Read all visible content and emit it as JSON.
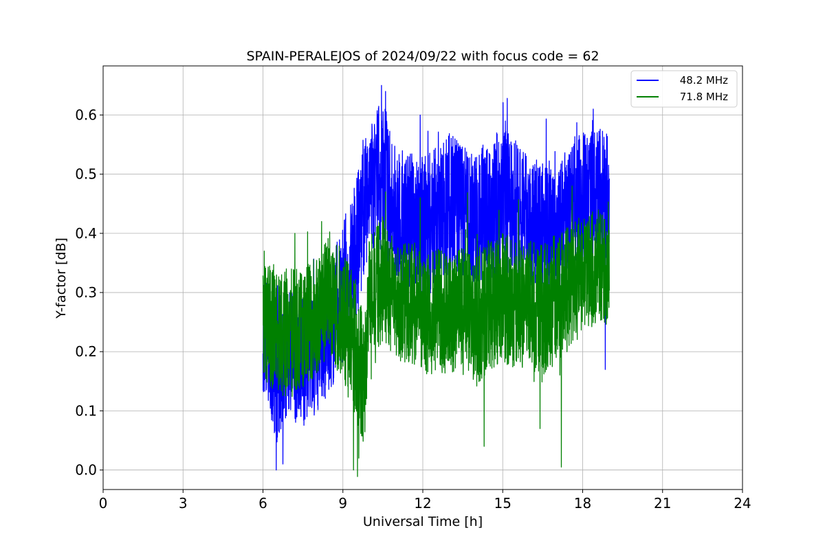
{
  "chart_data": {
    "type": "line",
    "title": "SPAIN-PERALEJOS of 2024/09/22 with focus code = 62",
    "xlabel": "Universal Time [h]",
    "ylabel": "Y-factor [dB]",
    "xlim": [
      0,
      24
    ],
    "ylim": [
      -0.033,
      0.683
    ],
    "xticks": [
      0,
      3,
      6,
      9,
      12,
      15,
      18,
      21,
      24
    ],
    "yticks": [
      0.0,
      0.1,
      0.2,
      0.3,
      0.4,
      0.5,
      0.6
    ],
    "grid": true,
    "legend_position": "top-right",
    "series": [
      {
        "name": "48.2 MHz",
        "color": "#0000ff",
        "x_range": [
          6.0,
          19.0
        ],
        "profile": [
          [
            6.0,
            0.24,
            0.22
          ],
          [
            6.25,
            0.2,
            0.2
          ],
          [
            6.5,
            0.17,
            0.26
          ],
          [
            6.75,
            0.18,
            0.24
          ],
          [
            7.0,
            0.19,
            0.22
          ],
          [
            7.5,
            0.19,
            0.22
          ],
          [
            8.0,
            0.2,
            0.22
          ],
          [
            8.5,
            0.24,
            0.22
          ],
          [
            9.0,
            0.3,
            0.24
          ],
          [
            9.5,
            0.37,
            0.24
          ],
          [
            10.0,
            0.48,
            0.22
          ],
          [
            10.5,
            0.5,
            0.26
          ],
          [
            11.0,
            0.43,
            0.22
          ],
          [
            11.5,
            0.42,
            0.24
          ],
          [
            12.0,
            0.4,
            0.26
          ],
          [
            12.5,
            0.43,
            0.24
          ],
          [
            13.0,
            0.45,
            0.24
          ],
          [
            13.5,
            0.44,
            0.22
          ],
          [
            14.0,
            0.42,
            0.22
          ],
          [
            14.5,
            0.44,
            0.26
          ],
          [
            15.0,
            0.46,
            0.24
          ],
          [
            15.5,
            0.44,
            0.24
          ],
          [
            16.0,
            0.42,
            0.22
          ],
          [
            16.5,
            0.41,
            0.22
          ],
          [
            17.0,
            0.4,
            0.22
          ],
          [
            17.5,
            0.45,
            0.22
          ],
          [
            18.0,
            0.46,
            0.22
          ],
          [
            18.5,
            0.47,
            0.22
          ],
          [
            19.0,
            0.46,
            0.22
          ]
        ],
        "spikes": [
          [
            6.5,
            0.0
          ],
          [
            6.75,
            0.01
          ],
          [
            10.45,
            0.65
          ],
          [
            10.6,
            0.64
          ],
          [
            11.9,
            0.6
          ],
          [
            15.1,
            0.59
          ],
          [
            18.4,
            0.61
          ],
          [
            18.85,
            0.17
          ]
        ]
      },
      {
        "name": "71.8 MHz",
        "color": "#008000",
        "x_range": [
          6.0,
          19.0
        ],
        "profile": [
          [
            6.0,
            0.25,
            0.2
          ],
          [
            6.5,
            0.24,
            0.22
          ],
          [
            7.0,
            0.23,
            0.22
          ],
          [
            7.5,
            0.24,
            0.2
          ],
          [
            8.0,
            0.26,
            0.2
          ],
          [
            8.5,
            0.3,
            0.22
          ],
          [
            9.0,
            0.26,
            0.22
          ],
          [
            9.5,
            0.2,
            0.24
          ],
          [
            9.8,
            0.15,
            0.22
          ],
          [
            10.0,
            0.3,
            0.2
          ],
          [
            10.5,
            0.32,
            0.22
          ],
          [
            11.0,
            0.28,
            0.2
          ],
          [
            11.5,
            0.29,
            0.22
          ],
          [
            12.0,
            0.26,
            0.2
          ],
          [
            12.5,
            0.27,
            0.22
          ],
          [
            13.0,
            0.26,
            0.2
          ],
          [
            13.5,
            0.27,
            0.22
          ],
          [
            14.0,
            0.26,
            0.24
          ],
          [
            14.5,
            0.28,
            0.22
          ],
          [
            15.0,
            0.29,
            0.22
          ],
          [
            15.5,
            0.28,
            0.22
          ],
          [
            16.0,
            0.28,
            0.22
          ],
          [
            16.5,
            0.27,
            0.22
          ],
          [
            17.0,
            0.29,
            0.22
          ],
          [
            17.5,
            0.31,
            0.22
          ],
          [
            18.0,
            0.33,
            0.2
          ],
          [
            18.5,
            0.34,
            0.2
          ],
          [
            19.0,
            0.34,
            0.2
          ]
        ],
        "spikes": [
          [
            6.05,
            0.37
          ],
          [
            7.2,
            0.4
          ],
          [
            8.2,
            0.42
          ],
          [
            9.4,
            0.0
          ],
          [
            9.6,
            0.02
          ],
          [
            10.6,
            0.47
          ],
          [
            11.9,
            0.46
          ],
          [
            14.3,
            0.04
          ],
          [
            16.4,
            0.07
          ],
          [
            17.2,
            0.005
          ],
          [
            17.6,
            0.48
          ]
        ]
      }
    ]
  }
}
